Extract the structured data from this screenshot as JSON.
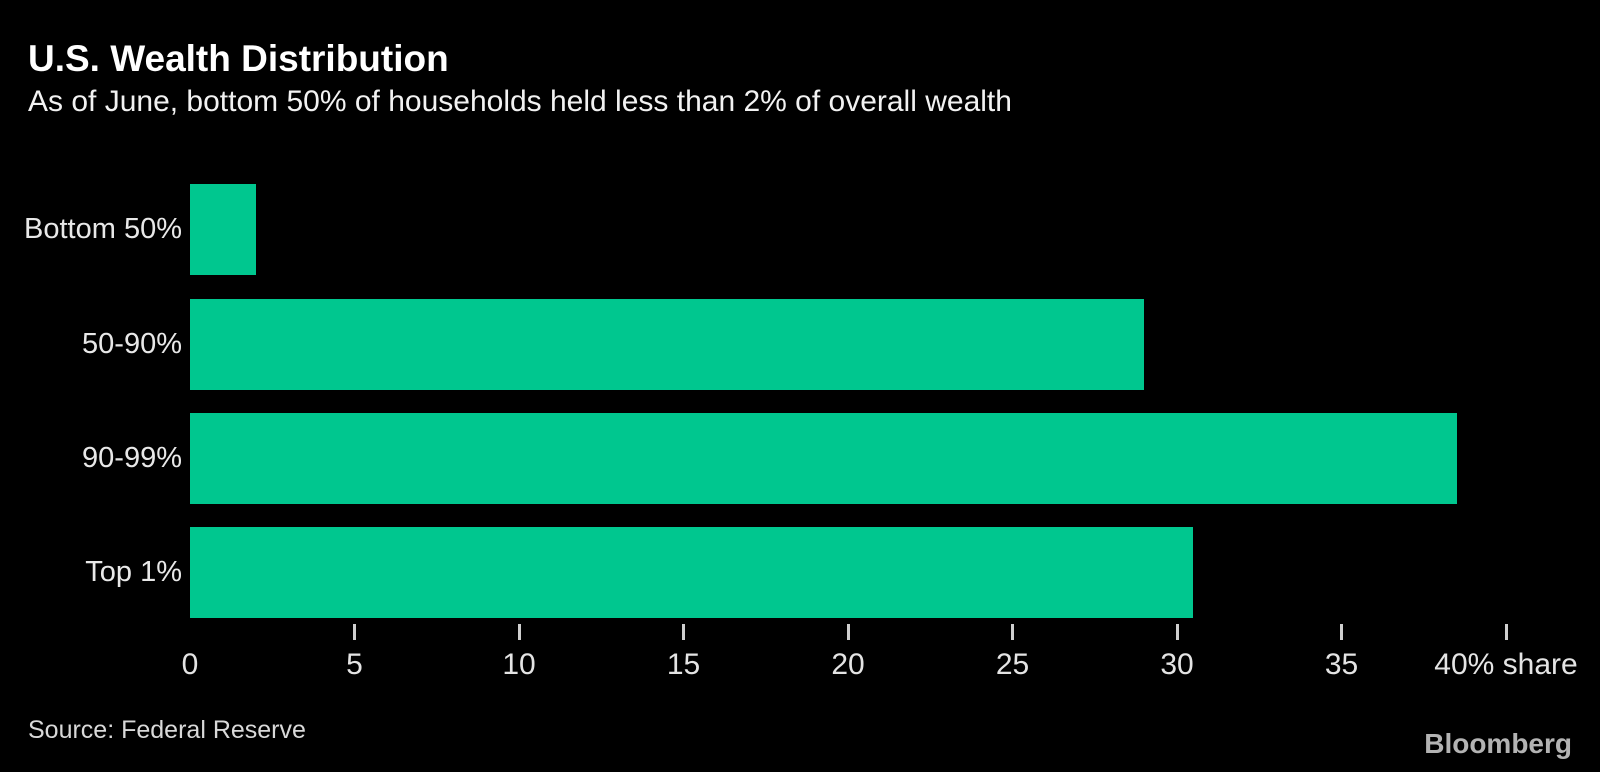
{
  "header": {
    "title": "U.S. Wealth Distribution",
    "subtitle": "As of June, bottom 50% of households held less than 2% of overall wealth"
  },
  "chart_data": {
    "type": "bar",
    "orientation": "horizontal",
    "title": "U.S. Wealth Distribution",
    "subtitle": "As of June, bottom 50% of households held less than 2% of overall wealth",
    "categories": [
      "Bottom 50%",
      "50-90%",
      "90-99%",
      "Top 1%"
    ],
    "values": [
      2,
      29,
      38.5,
      30.5
    ],
    "xlabel": "% share",
    "ylabel": "",
    "xlim": [
      0,
      40
    ],
    "xticks": [
      0,
      5,
      10,
      15,
      20,
      25,
      30,
      35,
      40
    ],
    "xtick_labels": [
      "0",
      "5",
      "10",
      "15",
      "20",
      "25",
      "30",
      "35",
      "40% share"
    ],
    "bar_color": "#00C78F",
    "grid": false,
    "legend": false
  },
  "footer": {
    "source": "Source: Federal Reserve",
    "brand": "Bloomberg"
  },
  "colors": {
    "background": "#000000",
    "bar_green": "#00C78F",
    "title_text": "#ffffff",
    "axis_text": "#e4e4e4",
    "source_text": "#d9d9d9",
    "brand_text": "#b3b3b3"
  }
}
